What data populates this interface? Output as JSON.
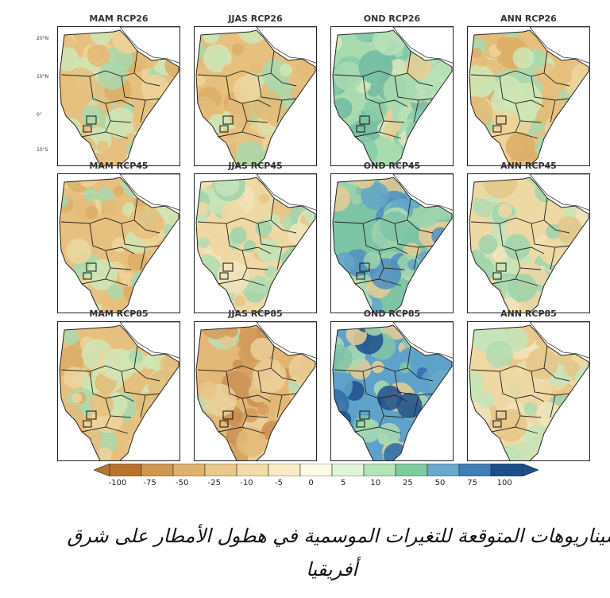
{
  "panels": [
    {
      "label": "MAM RCP26",
      "season": "MAM",
      "scenario": "RCP26",
      "palette": "dry"
    },
    {
      "label": "JJAS RCP26",
      "season": "JJAS",
      "scenario": "RCP26",
      "palette": "dry"
    },
    {
      "label": "OND RCP26",
      "season": "OND",
      "scenario": "RCP26",
      "palette": "wet1"
    },
    {
      "label": "ANN RCP26",
      "season": "ANN",
      "scenario": "RCP26",
      "palette": "dry"
    },
    {
      "label": "MAM RCP45",
      "season": "MAM",
      "scenario": "RCP45",
      "palette": "dry"
    },
    {
      "label": "JJAS RCP45",
      "season": "JJAS",
      "scenario": "RCP45",
      "palette": "mixed"
    },
    {
      "label": "OND RCP45",
      "season": "OND",
      "scenario": "RCP45",
      "palette": "wet2"
    },
    {
      "label": "ANN RCP45",
      "season": "ANN",
      "scenario": "RCP45",
      "palette": "mixed"
    },
    {
      "label": "MAM RCP85",
      "season": "MAM",
      "scenario": "RCP85",
      "palette": "dry"
    },
    {
      "label": "JJAS RCP85",
      "season": "JJAS",
      "scenario": "RCP85",
      "palette": "dry2"
    },
    {
      "label": "OND RCP85",
      "season": "OND",
      "scenario": "RCP85",
      "palette": "wet3"
    },
    {
      "label": "ANN RCP85",
      "season": "ANN",
      "scenario": "RCP85",
      "palette": "mixed"
    }
  ],
  "lat_labels": [
    "20°N",
    "10°N",
    "0°",
    "10°S"
  ],
  "colorbar": {
    "ticks": [
      "-100",
      "-75",
      "-50",
      "-25",
      "-10",
      "-5",
      "0",
      "5",
      "10",
      "25",
      "50",
      "75",
      "100"
    ],
    "colors": [
      "#b8732f",
      "#cf9852",
      "#ddb26e",
      "#e8c88c",
      "#f1dca8",
      "#f8ecc8",
      "#fdfae6",
      "#e0f4d8",
      "#b5e3b8",
      "#7fcba0",
      "#6aa8cc",
      "#3f7fb8",
      "#1c4f8c"
    ]
  },
  "caption": {
    "line1": "سيناريوهات المتوقعة للتغيرات الموسمية في هطول الأمطار على شرق",
    "line2": "أفريقيا"
  }
}
